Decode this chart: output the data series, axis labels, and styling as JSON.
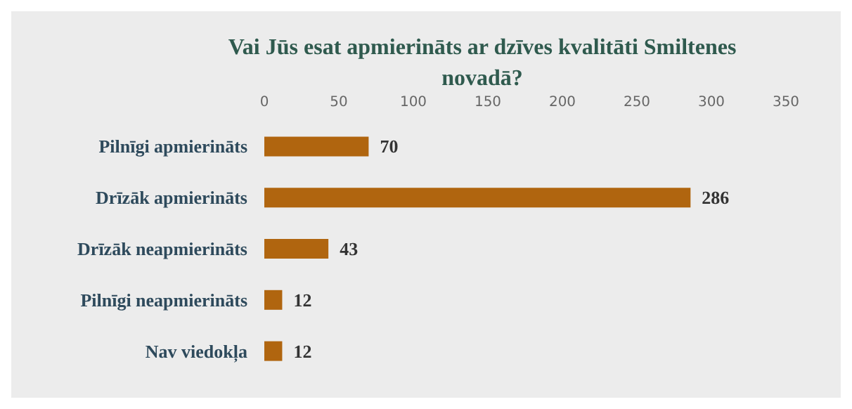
{
  "chart_data": {
    "type": "bar",
    "orientation": "horizontal",
    "title": "Vai Jūs esat apmierināts ar dzīves kvalitāti Smiltenes\nnovadā?",
    "categories": [
      "Pilnīgi apmierināts",
      "Drīzāk apmierināts",
      "Drīzāk neapmierināts",
      "Pilnīgi neapmierināts",
      "Nav viedokļa"
    ],
    "values": [
      70,
      286,
      43,
      12,
      12
    ],
    "color": "#b0650f",
    "xlim": [
      0,
      350
    ],
    "xticks": [
      0,
      50,
      100,
      150,
      200,
      250,
      300,
      350
    ],
    "grid": false,
    "data_labels": true
  }
}
